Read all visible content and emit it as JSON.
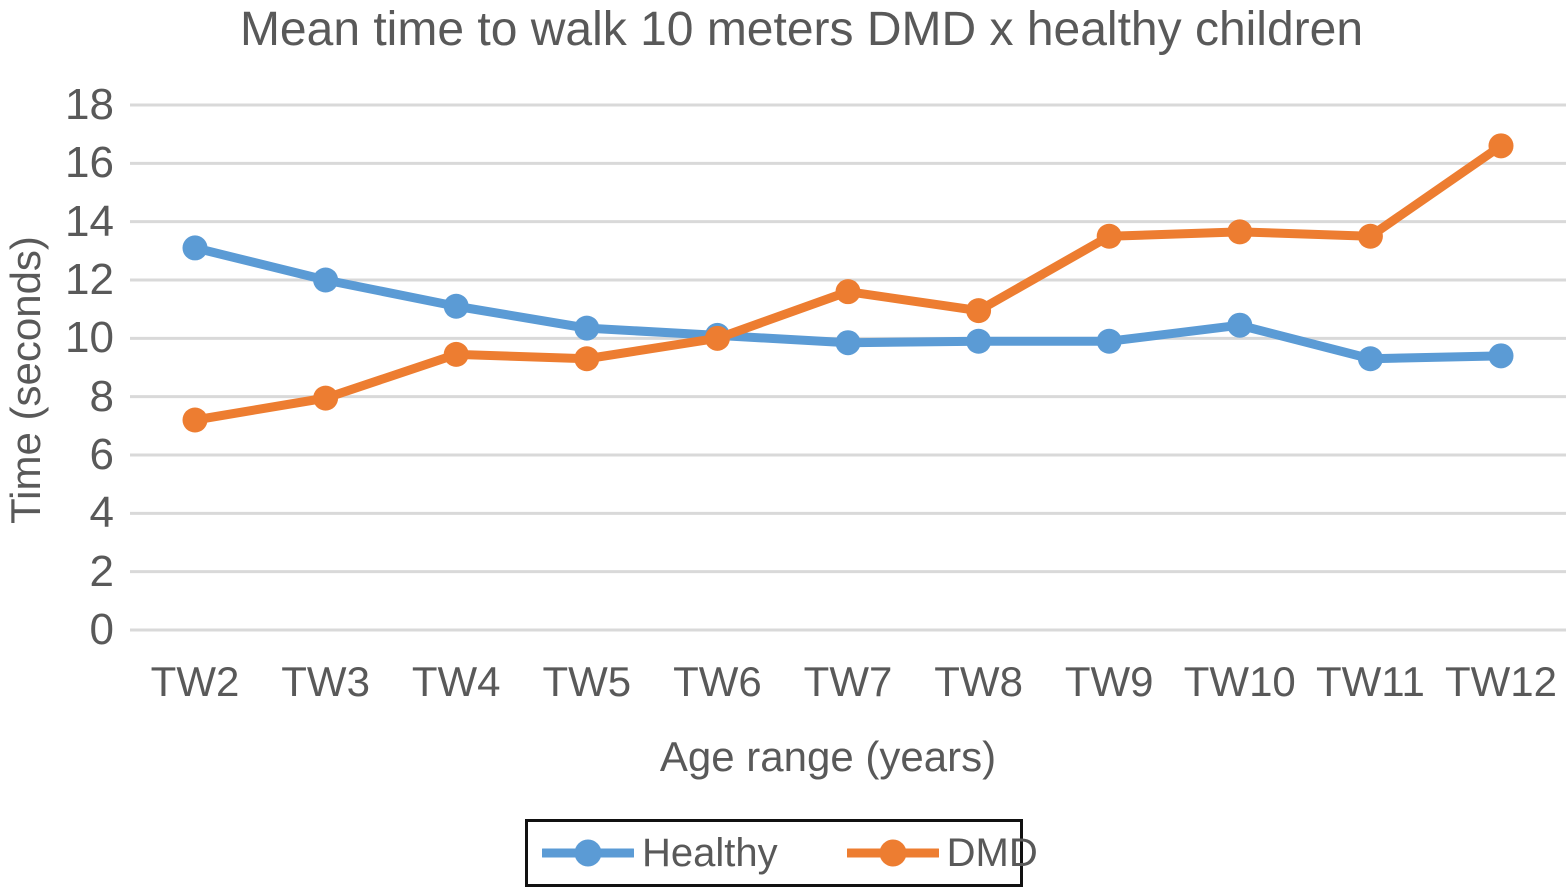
{
  "title": "Mean time to walk 10 meters DMD x healthy children",
  "colors": {
    "healthy": "#5B9BD5",
    "dmd": "#ED7D31",
    "text": "#595959",
    "gridline": "#D9D9D9",
    "legend_border": "#111111",
    "background": "#FFFFFF"
  },
  "legend": {
    "items": [
      {
        "label": "Healthy",
        "color": "#5B9BD5"
      },
      {
        "label": "DMD",
        "color": "#ED7D31"
      }
    ]
  },
  "chart_data": {
    "type": "line",
    "title": "Mean time to walk 10 meters DMD x healthy children",
    "xlabel": "Age range (years)",
    "ylabel": "Time (seconds)",
    "categories": [
      "TW2",
      "TW3",
      "TW4",
      "TW5",
      "TW6",
      "TW7",
      "TW8",
      "TW9",
      "TW10",
      "TW11",
      "TW12"
    ],
    "series": [
      {
        "name": "Healthy",
        "color": "#5B9BD5",
        "values": [
          13.1,
          12.0,
          11.1,
          10.35,
          10.1,
          9.85,
          9.9,
          9.9,
          10.45,
          9.3,
          9.4
        ]
      },
      {
        "name": "DMD",
        "color": "#ED7D31",
        "values": [
          7.2,
          7.95,
          9.45,
          9.3,
          10.0,
          11.6,
          10.95,
          13.5,
          13.65,
          13.5,
          16.6
        ]
      }
    ],
    "ylim": [
      0,
      18
    ],
    "yticks": [
      0,
      2,
      4,
      6,
      8,
      10,
      12,
      14,
      16,
      18
    ],
    "grid": true,
    "legend_position": "bottom"
  }
}
